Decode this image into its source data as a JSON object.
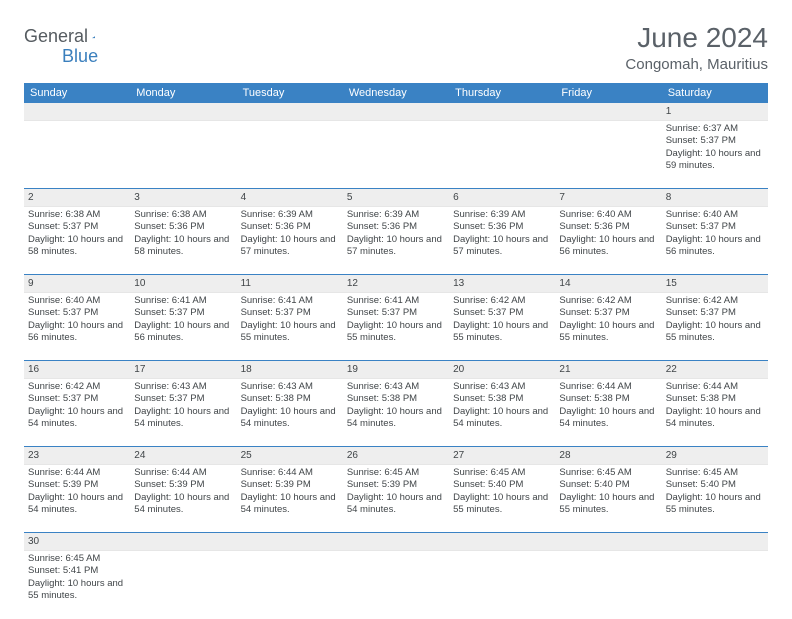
{
  "brand": {
    "part1": "General",
    "part2": "Blue"
  },
  "title": "June 2024",
  "location": "Congomah, Mauritius",
  "colors": {
    "header_bg": "#3a82c4",
    "header_text": "#ffffff",
    "daynum_bg": "#eeeeee",
    "text": "#404548",
    "rule": "#3a82c4"
  },
  "day_headers": [
    "Sunday",
    "Monday",
    "Tuesday",
    "Wednesday",
    "Thursday",
    "Friday",
    "Saturday"
  ],
  "weeks": [
    [
      null,
      null,
      null,
      null,
      null,
      null,
      {
        "n": "1",
        "sr": "Sunrise: 6:37 AM",
        "ss": "Sunset: 5:37 PM",
        "dl": "Daylight: 10 hours and 59 minutes."
      }
    ],
    [
      {
        "n": "2",
        "sr": "Sunrise: 6:38 AM",
        "ss": "Sunset: 5:37 PM",
        "dl": "Daylight: 10 hours and 58 minutes."
      },
      {
        "n": "3",
        "sr": "Sunrise: 6:38 AM",
        "ss": "Sunset: 5:36 PM",
        "dl": "Daylight: 10 hours and 58 minutes."
      },
      {
        "n": "4",
        "sr": "Sunrise: 6:39 AM",
        "ss": "Sunset: 5:36 PM",
        "dl": "Daylight: 10 hours and 57 minutes."
      },
      {
        "n": "5",
        "sr": "Sunrise: 6:39 AM",
        "ss": "Sunset: 5:36 PM",
        "dl": "Daylight: 10 hours and 57 minutes."
      },
      {
        "n": "6",
        "sr": "Sunrise: 6:39 AM",
        "ss": "Sunset: 5:36 PM",
        "dl": "Daylight: 10 hours and 57 minutes."
      },
      {
        "n": "7",
        "sr": "Sunrise: 6:40 AM",
        "ss": "Sunset: 5:36 PM",
        "dl": "Daylight: 10 hours and 56 minutes."
      },
      {
        "n": "8",
        "sr": "Sunrise: 6:40 AM",
        "ss": "Sunset: 5:37 PM",
        "dl": "Daylight: 10 hours and 56 minutes."
      }
    ],
    [
      {
        "n": "9",
        "sr": "Sunrise: 6:40 AM",
        "ss": "Sunset: 5:37 PM",
        "dl": "Daylight: 10 hours and 56 minutes."
      },
      {
        "n": "10",
        "sr": "Sunrise: 6:41 AM",
        "ss": "Sunset: 5:37 PM",
        "dl": "Daylight: 10 hours and 56 minutes."
      },
      {
        "n": "11",
        "sr": "Sunrise: 6:41 AM",
        "ss": "Sunset: 5:37 PM",
        "dl": "Daylight: 10 hours and 55 minutes."
      },
      {
        "n": "12",
        "sr": "Sunrise: 6:41 AM",
        "ss": "Sunset: 5:37 PM",
        "dl": "Daylight: 10 hours and 55 minutes."
      },
      {
        "n": "13",
        "sr": "Sunrise: 6:42 AM",
        "ss": "Sunset: 5:37 PM",
        "dl": "Daylight: 10 hours and 55 minutes."
      },
      {
        "n": "14",
        "sr": "Sunrise: 6:42 AM",
        "ss": "Sunset: 5:37 PM",
        "dl": "Daylight: 10 hours and 55 minutes."
      },
      {
        "n": "15",
        "sr": "Sunrise: 6:42 AM",
        "ss": "Sunset: 5:37 PM",
        "dl": "Daylight: 10 hours and 55 minutes."
      }
    ],
    [
      {
        "n": "16",
        "sr": "Sunrise: 6:42 AM",
        "ss": "Sunset: 5:37 PM",
        "dl": "Daylight: 10 hours and 54 minutes."
      },
      {
        "n": "17",
        "sr": "Sunrise: 6:43 AM",
        "ss": "Sunset: 5:37 PM",
        "dl": "Daylight: 10 hours and 54 minutes."
      },
      {
        "n": "18",
        "sr": "Sunrise: 6:43 AM",
        "ss": "Sunset: 5:38 PM",
        "dl": "Daylight: 10 hours and 54 minutes."
      },
      {
        "n": "19",
        "sr": "Sunrise: 6:43 AM",
        "ss": "Sunset: 5:38 PM",
        "dl": "Daylight: 10 hours and 54 minutes."
      },
      {
        "n": "20",
        "sr": "Sunrise: 6:43 AM",
        "ss": "Sunset: 5:38 PM",
        "dl": "Daylight: 10 hours and 54 minutes."
      },
      {
        "n": "21",
        "sr": "Sunrise: 6:44 AM",
        "ss": "Sunset: 5:38 PM",
        "dl": "Daylight: 10 hours and 54 minutes."
      },
      {
        "n": "22",
        "sr": "Sunrise: 6:44 AM",
        "ss": "Sunset: 5:38 PM",
        "dl": "Daylight: 10 hours and 54 minutes."
      }
    ],
    [
      {
        "n": "23",
        "sr": "Sunrise: 6:44 AM",
        "ss": "Sunset: 5:39 PM",
        "dl": "Daylight: 10 hours and 54 minutes."
      },
      {
        "n": "24",
        "sr": "Sunrise: 6:44 AM",
        "ss": "Sunset: 5:39 PM",
        "dl": "Daylight: 10 hours and 54 minutes."
      },
      {
        "n": "25",
        "sr": "Sunrise: 6:44 AM",
        "ss": "Sunset: 5:39 PM",
        "dl": "Daylight: 10 hours and 54 minutes."
      },
      {
        "n": "26",
        "sr": "Sunrise: 6:45 AM",
        "ss": "Sunset: 5:39 PM",
        "dl": "Daylight: 10 hours and 54 minutes."
      },
      {
        "n": "27",
        "sr": "Sunrise: 6:45 AM",
        "ss": "Sunset: 5:40 PM",
        "dl": "Daylight: 10 hours and 55 minutes."
      },
      {
        "n": "28",
        "sr": "Sunrise: 6:45 AM",
        "ss": "Sunset: 5:40 PM",
        "dl": "Daylight: 10 hours and 55 minutes."
      },
      {
        "n": "29",
        "sr": "Sunrise: 6:45 AM",
        "ss": "Sunset: 5:40 PM",
        "dl": "Daylight: 10 hours and 55 minutes."
      }
    ],
    [
      {
        "n": "30",
        "sr": "Sunrise: 6:45 AM",
        "ss": "Sunset: 5:41 PM",
        "dl": "Daylight: 10 hours and 55 minutes."
      },
      null,
      null,
      null,
      null,
      null,
      null
    ]
  ]
}
